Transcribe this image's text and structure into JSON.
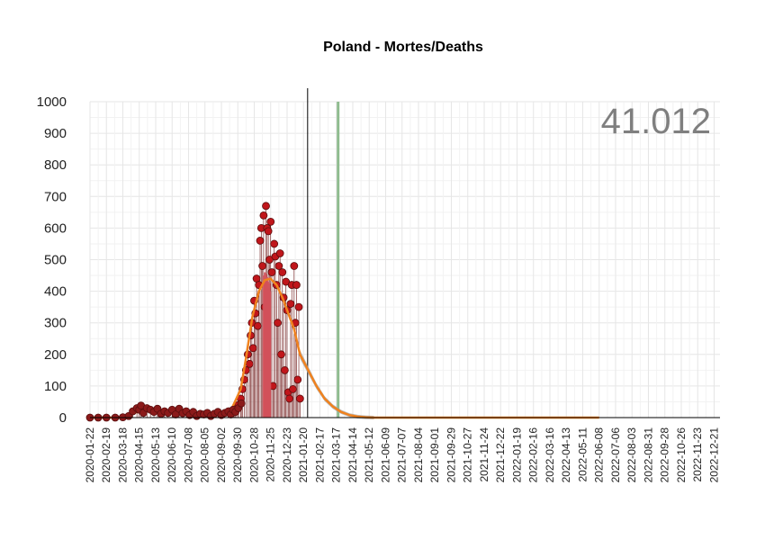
{
  "chart_data": {
    "type": "scatter",
    "title": "Poland - Mortes/Deaths",
    "total_label": "41.012",
    "ylim": [
      0,
      1000
    ],
    "yticks": [
      0,
      100,
      200,
      300,
      400,
      500,
      600,
      700,
      800,
      900,
      1000
    ],
    "xlim": [
      "2020-01-22",
      "2022-12-31"
    ],
    "grid": true,
    "date_ticks": [
      "2020-01-22",
      "2020-02-19",
      "2020-03-18",
      "2020-04-15",
      "2020-05-13",
      "2020-06-10",
      "2020-07-08",
      "2020-08-05",
      "2020-09-02",
      "2020-09-30",
      "2020-10-28",
      "2020-11-25",
      "2020-12-23",
      "2021-01-20",
      "2021-02-17",
      "2021-03-17",
      "2021-04-14",
      "2021-05-12",
      "2021-06-09",
      "2021-07-07",
      "2021-08-04",
      "2021-09-01",
      "2021-09-29",
      "2021-10-27",
      "2021-11-24",
      "2021-12-22",
      "2022-01-19",
      "2022-02-16",
      "2022-03-16",
      "2022-04-13",
      "2022-05-11",
      "2022-06-08",
      "2022-07-06",
      "2022-08-03",
      "2022-08-31",
      "2022-09-28",
      "2022-10-26",
      "2022-11-23",
      "2022-12-21"
    ],
    "vlines": [
      {
        "date": "2021-01-27",
        "color": "#000000"
      },
      {
        "date": "2021-03-20",
        "color": "#8fbc8f"
      }
    ],
    "series": [
      {
        "kind": "points",
        "color": "#c0161b",
        "points": [
          [
            "2020-09-20",
            15
          ],
          [
            "2020-09-24",
            20
          ],
          [
            "2020-09-28",
            30
          ],
          [
            "2020-10-01",
            40
          ],
          [
            "2020-10-05",
            60
          ],
          [
            "2020-10-08",
            90
          ],
          [
            "2020-10-11",
            120
          ],
          [
            "2020-10-14",
            150
          ],
          [
            "2020-10-17",
            200
          ],
          [
            "2020-10-20",
            170
          ],
          [
            "2020-10-22",
            260
          ],
          [
            "2020-10-24",
            300
          ],
          [
            "2020-10-26",
            220
          ],
          [
            "2020-10-28",
            370
          ],
          [
            "2020-10-30",
            330
          ],
          [
            "2020-11-01",
            440
          ],
          [
            "2020-11-03",
            290
          ],
          [
            "2020-11-05",
            420
          ],
          [
            "2020-11-07",
            560
          ],
          [
            "2020-11-09",
            600
          ],
          [
            "2020-11-11",
            480
          ],
          [
            "2020-11-13",
            640
          ],
          [
            "2020-11-15",
            350
          ],
          [
            "2020-11-17",
            670
          ],
          [
            "2020-11-19",
            600
          ],
          [
            "2020-11-21",
            590
          ],
          [
            "2020-11-23",
            500
          ],
          [
            "2020-11-25",
            620
          ],
          [
            "2020-11-27",
            460
          ],
          [
            "2020-11-29",
            100
          ],
          [
            "2020-12-01",
            550
          ],
          [
            "2020-12-03",
            510
          ],
          [
            "2020-12-05",
            420
          ],
          [
            "2020-12-07",
            300
          ],
          [
            "2020-12-09",
            480
          ],
          [
            "2020-12-11",
            520
          ],
          [
            "2020-12-13",
            200
          ],
          [
            "2020-12-15",
            460
          ],
          [
            "2020-12-17",
            380
          ],
          [
            "2020-12-19",
            150
          ],
          [
            "2020-12-21",
            430
          ],
          [
            "2020-12-23",
            340
          ],
          [
            "2020-12-25",
            80
          ],
          [
            "2020-12-27",
            60
          ],
          [
            "2020-12-29",
            360
          ],
          [
            "2020-12-31",
            420
          ],
          [
            "2021-01-02",
            90
          ],
          [
            "2021-01-04",
            480
          ],
          [
            "2021-01-06",
            300
          ],
          [
            "2021-01-08",
            420
          ],
          [
            "2021-01-10",
            120
          ],
          [
            "2021-01-12",
            350
          ],
          [
            "2021-01-14",
            60
          ]
        ]
      },
      {
        "kind": "bars",
        "color": "#d2515a",
        "points": [
          [
            "2020-11-13",
            450
          ],
          [
            "2020-11-14",
            430
          ],
          [
            "2020-11-15",
            460
          ],
          [
            "2020-11-16",
            440
          ],
          [
            "2020-11-17",
            455
          ],
          [
            "2020-11-18",
            440
          ],
          [
            "2020-11-19",
            420
          ],
          [
            "2020-11-20",
            445
          ],
          [
            "2020-11-21",
            430
          ],
          [
            "2020-11-22",
            410
          ],
          [
            "2020-11-23",
            425
          ],
          [
            "2020-11-24",
            400
          ]
        ]
      },
      {
        "kind": "band",
        "color": "#9e9e9e",
        "points": [
          [
            "2021-01-14",
            200
          ],
          [
            "2021-01-28",
            150
          ],
          [
            "2021-02-11",
            100
          ],
          [
            "2021-02-25",
            60
          ],
          [
            "2021-03-11",
            35
          ],
          [
            "2021-03-25",
            18
          ],
          [
            "2021-04-08",
            8
          ],
          [
            "2021-04-22",
            3
          ],
          [
            "2021-05-06",
            1
          ],
          [
            "2021-05-20",
            0
          ]
        ]
      },
      {
        "kind": "line",
        "color": "#f0821e",
        "points": [
          [
            "2020-01-22",
            0
          ],
          [
            "2020-03-01",
            0
          ],
          [
            "2020-03-20",
            2
          ],
          [
            "2020-04-05",
            15
          ],
          [
            "2020-04-20",
            20
          ],
          [
            "2020-05-10",
            20
          ],
          [
            "2020-06-10",
            18
          ],
          [
            "2020-07-08",
            15
          ],
          [
            "2020-08-05",
            12
          ],
          [
            "2020-09-02",
            10
          ],
          [
            "2020-09-20",
            30
          ],
          [
            "2020-10-05",
            90
          ],
          [
            "2020-10-15",
            200
          ],
          [
            "2020-10-25",
            320
          ],
          [
            "2020-11-05",
            400
          ],
          [
            "2020-11-15",
            435
          ],
          [
            "2020-11-25",
            440
          ],
          [
            "2020-12-05",
            420
          ],
          [
            "2020-12-15",
            380
          ],
          [
            "2020-12-25",
            330
          ],
          [
            "2021-01-04",
            280
          ],
          [
            "2021-01-14",
            200
          ],
          [
            "2021-01-28",
            150
          ],
          [
            "2021-02-11",
            100
          ],
          [
            "2021-02-25",
            60
          ],
          [
            "2021-03-11",
            35
          ],
          [
            "2021-03-25",
            18
          ],
          [
            "2021-04-08",
            8
          ],
          [
            "2021-04-22",
            3
          ],
          [
            "2021-05-06",
            1
          ],
          [
            "2021-05-20",
            0
          ],
          [
            "2022-06-08",
            0
          ]
        ]
      },
      {
        "kind": "points",
        "color": "#8b1a1a",
        "points": [
          [
            "2020-01-22",
            0
          ],
          [
            "2020-02-05",
            0
          ],
          [
            "2020-02-19",
            0
          ],
          [
            "2020-03-05",
            0
          ],
          [
            "2020-03-18",
            1
          ],
          [
            "2020-03-28",
            5
          ],
          [
            "2020-04-04",
            20
          ],
          [
            "2020-04-11",
            30
          ],
          [
            "2020-04-15",
            25
          ],
          [
            "2020-04-18",
            38
          ],
          [
            "2020-04-22",
            15
          ],
          [
            "2020-04-28",
            30
          ],
          [
            "2020-05-04",
            25
          ],
          [
            "2020-05-10",
            18
          ],
          [
            "2020-05-16",
            28
          ],
          [
            "2020-05-22",
            12
          ],
          [
            "2020-05-28",
            20
          ],
          [
            "2020-06-03",
            15
          ],
          [
            "2020-06-10",
            25
          ],
          [
            "2020-06-16",
            10
          ],
          [
            "2020-06-22",
            28
          ],
          [
            "2020-06-28",
            14
          ],
          [
            "2020-07-04",
            20
          ],
          [
            "2020-07-10",
            8
          ],
          [
            "2020-07-16",
            18
          ],
          [
            "2020-07-22",
            5
          ],
          [
            "2020-07-28",
            12
          ],
          [
            "2020-08-03",
            10
          ],
          [
            "2020-08-09",
            15
          ],
          [
            "2020-08-15",
            5
          ],
          [
            "2020-08-21",
            12
          ],
          [
            "2020-08-27",
            18
          ],
          [
            "2020-09-02",
            8
          ],
          [
            "2020-09-08",
            15
          ],
          [
            "2020-09-14",
            20
          ],
          [
            "2020-09-18",
            10
          ],
          [
            "2020-09-22",
            25
          ],
          [
            "2020-09-26",
            18
          ],
          [
            "2020-10-01",
            30
          ],
          [
            "2020-10-06",
            45
          ]
        ]
      }
    ]
  }
}
